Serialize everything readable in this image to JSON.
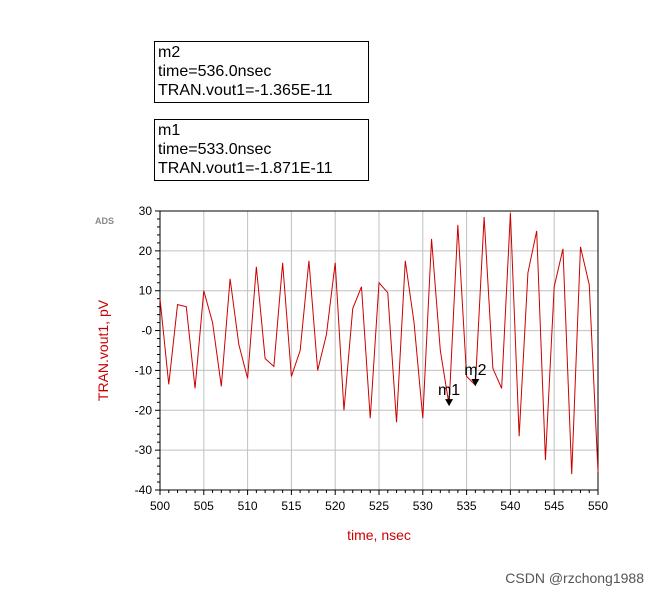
{
  "markers": [
    {
      "name": "m2",
      "time_line": "time=536.0nsec",
      "value_line": "TRAN.vout1=-1.365E-11"
    },
    {
      "name": "m1",
      "time_line": "time=533.0nsec",
      "value_line": "TRAN.vout1=-1.871E-11"
    }
  ],
  "ads_logo": "ADS",
  "watermark": "CSDN @rzchong1988",
  "colors": {
    "trace": "#cc0000",
    "axis_label": "#cc0000",
    "grid": "#c0c0c0",
    "frame": "#000000"
  },
  "chart_data": {
    "type": "line",
    "xlabel": "time, nsec",
    "ylabel": "TRAN.vout1, pV",
    "xlim": [
      500,
      550
    ],
    "ylim": [
      -40,
      30
    ],
    "grid": true,
    "x_ticks": [
      "500",
      "505",
      "510",
      "515",
      "520",
      "525",
      "530",
      "535",
      "540",
      "545",
      "550"
    ],
    "y_ticks": [
      "30",
      "20",
      "10",
      "-0",
      "-10",
      "-20",
      "-30",
      "-40"
    ],
    "series": [
      {
        "x": [
          500,
          501,
          502,
          503,
          504,
          505,
          506,
          507,
          508,
          509,
          510,
          511,
          512,
          513,
          514,
          515,
          516,
          517,
          518,
          519,
          520,
          521,
          522,
          523,
          524,
          525,
          526,
          527,
          528,
          529,
          530,
          531,
          532,
          533,
          534,
          535,
          536,
          537,
          538,
          539,
          540,
          541,
          542,
          543,
          544,
          545,
          546,
          547,
          548,
          549,
          550
        ],
        "values": [
          8,
          -13.5,
          6.5,
          6,
          -14.5,
          10,
          2,
          -14,
          13,
          -3.5,
          -12,
          16,
          -7,
          -9,
          17,
          -11.5,
          -5,
          17.5,
          -10,
          -1,
          17,
          -20,
          5.5,
          11,
          -22,
          12,
          9.5,
          -23,
          17.5,
          2,
          -22,
          23,
          -5,
          -18.7,
          26.5,
          -11.5,
          -13.7,
          28.5,
          -9.5,
          -14.5,
          29.5,
          -26.5,
          14.5,
          25,
          -32.5,
          11,
          20.5,
          -36,
          21,
          11.5,
          -35.5
        ]
      }
    ],
    "annotations": [
      {
        "label": "m1",
        "x": 533,
        "y": -18.71
      },
      {
        "label": "m2",
        "x": 536,
        "y": -13.65
      }
    ]
  }
}
